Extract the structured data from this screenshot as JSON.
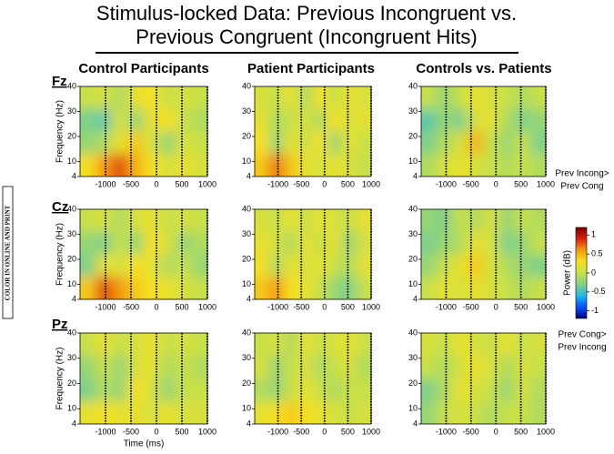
{
  "title": [
    "Stimulus-locked Data: Previous Incongruent vs.",
    "Previous Congruent (Incongruent Hits)"
  ],
  "columns": [
    "Control Participants",
    "Patient Participants",
    "Controls vs. Patients"
  ],
  "rows": [
    "Fz",
    "Cz",
    "Pz"
  ],
  "side_note": "COLOR IN ONLINE AND PRINT",
  "colormap": [
    "#00007f",
    "#0050ff",
    "#25b8e6",
    "#7fd08a",
    "#c8e04a",
    "#f5e020",
    "#f59a10",
    "#d92010",
    "#7f0000"
  ],
  "colorbar": {
    "label": "Power (dB)",
    "clim": [
      -1.2,
      1.2
    ],
    "ticks": [
      1,
      0.5,
      0,
      -0.5,
      -1
    ],
    "top_label": [
      "Prev Incong>",
      "Prev Cong"
    ],
    "bottom_label": [
      "Prev Cong>",
      "Prev Incong"
    ]
  },
  "chart_data": [
    {
      "type": "heatmap",
      "ylabel": "Frequency (Hz)",
      "xlim": [
        -1500,
        1000
      ],
      "ylim": [
        4,
        40
      ],
      "xticks": [
        -1000,
        -500,
        0,
        500,
        1000
      ],
      "yticks": [
        40,
        30,
        20,
        10,
        4
      ],
      "values": [
        [
          0,
          0.1,
          -0.1,
          0.2,
          0.3,
          0,
          0.1,
          0
        ],
        [
          -0.3,
          -0.4,
          0.1,
          -0.2,
          0.2,
          0.3,
          0,
          -0.1
        ],
        [
          -0.2,
          -0.1,
          0.2,
          0.4,
          0.1,
          -0.2,
          0.1,
          0
        ],
        [
          0.3,
          0.6,
          0.8,
          0.5,
          0.3,
          0.1,
          0.2,
          0.1
        ]
      ]
    },
    {
      "type": "heatmap",
      "xlim": [
        -1500,
        1000
      ],
      "ylim": [
        4,
        40
      ],
      "xticks": [
        -1000,
        -500,
        0,
        500,
        1000
      ],
      "yticks": [
        40,
        30,
        20,
        10,
        4
      ],
      "values": [
        [
          0.1,
          0,
          0.2,
          -0.1,
          0.3,
          0,
          0.2,
          0.1
        ],
        [
          0.2,
          -0.1,
          0,
          0.1,
          -0.1,
          0.3,
          0.1,
          0.2
        ],
        [
          0.3,
          -0.2,
          0.2,
          0,
          0.3,
          -0.2,
          0.2,
          0
        ],
        [
          0.4,
          0.7,
          0.4,
          0.2,
          0.1,
          0.2,
          0.1,
          0
        ]
      ]
    },
    {
      "type": "heatmap",
      "xlim": [
        -1500,
        1000
      ],
      "ylim": [
        4,
        40
      ],
      "xticks": [
        -1000,
        -500,
        0,
        500,
        1000
      ],
      "yticks": [
        40,
        30,
        20,
        10,
        4
      ],
      "values": [
        [
          0,
          -0.2,
          0,
          0.2,
          0.1,
          0,
          -0.1,
          0
        ],
        [
          -0.4,
          -0.2,
          -0.3,
          0.1,
          0.2,
          -0.1,
          -0.3,
          -0.2
        ],
        [
          -0.3,
          -0.1,
          0.1,
          0.5,
          0,
          -0.2,
          0,
          -0.3
        ],
        [
          -0.1,
          0.1,
          0.2,
          0.1,
          0,
          -0.1,
          0,
          -0.1
        ]
      ]
    },
    {
      "type": "heatmap",
      "ylabel": "Frequency (Hz)",
      "xlim": [
        -1500,
        1000
      ],
      "ylim": [
        4,
        40
      ],
      "xticks": [
        -1000,
        -500,
        0,
        500,
        1000
      ],
      "yticks": [
        40,
        30,
        20,
        10,
        4
      ],
      "values": [
        [
          0,
          0.1,
          -0.1,
          0.1,
          0.2,
          0,
          0.1,
          0
        ],
        [
          -0.2,
          -0.3,
          0,
          -0.2,
          0.3,
          0.1,
          -0.2,
          -0.1
        ],
        [
          -0.3,
          0.2,
          0.1,
          0.3,
          0.2,
          -0.1,
          0,
          -0.2
        ],
        [
          0.4,
          0.8,
          0.6,
          0.4,
          0.3,
          0.2,
          0.1,
          0
        ]
      ]
    },
    {
      "type": "heatmap",
      "xlim": [
        -1500,
        1000
      ],
      "ylim": [
        4,
        40
      ],
      "xticks": [
        -1000,
        -500,
        0,
        500,
        1000
      ],
      "yticks": [
        40,
        30,
        20,
        10,
        4
      ],
      "values": [
        [
          0.1,
          0,
          0.2,
          0,
          0.2,
          0.1,
          0,
          0.2
        ],
        [
          0.2,
          0.1,
          -0.1,
          0.2,
          0,
          0.2,
          -0.2,
          0.1
        ],
        [
          0.3,
          -0.1,
          0.2,
          0.1,
          0.2,
          0,
          -0.1,
          0.2
        ],
        [
          0.4,
          0.6,
          0.3,
          0.2,
          0,
          -0.2,
          -0.3,
          0
        ]
      ]
    },
    {
      "type": "heatmap",
      "xlim": [
        -1500,
        1000
      ],
      "ylim": [
        4,
        40
      ],
      "xticks": [
        -1000,
        -500,
        0,
        500,
        1000
      ],
      "yticks": [
        40,
        30,
        20,
        10,
        4
      ],
      "values": [
        [
          -0.2,
          -0.3,
          0,
          -0.1,
          0.1,
          -0.2,
          0,
          -0.1
        ],
        [
          -0.3,
          -0.2,
          -0.1,
          0.2,
          0.1,
          -0.3,
          -0.2,
          0
        ],
        [
          -0.2,
          0,
          0.2,
          0.4,
          0.1,
          -0.1,
          -0.2,
          -0.3
        ],
        [
          0,
          0.2,
          0.1,
          0.2,
          0.1,
          0,
          -0.1,
          0
        ]
      ]
    },
    {
      "type": "heatmap",
      "ylabel": "Frequency (Hz)",
      "xlabel": "Time (ms)",
      "xlim": [
        -1500,
        1000
      ],
      "ylim": [
        4,
        40
      ],
      "xticks": [
        -1000,
        -500,
        0,
        500,
        1000
      ],
      "yticks": [
        40,
        30,
        20,
        10,
        4
      ],
      "values": [
        [
          0,
          0.2,
          0,
          0.1,
          0.2,
          0,
          0.1,
          0
        ],
        [
          -0.2,
          0,
          -0.2,
          0.1,
          0.2,
          -0.1,
          0,
          -0.1
        ],
        [
          -0.3,
          -0.1,
          -0.2,
          0.3,
          0.1,
          -0.2,
          0,
          0
        ],
        [
          0.2,
          0.3,
          0.2,
          0.2,
          0.1,
          0.2,
          0.1,
          0.1
        ]
      ]
    },
    {
      "type": "heatmap",
      "xlim": [
        -1500,
        1000
      ],
      "ylim": [
        4,
        40
      ],
      "xticks": [
        -1000,
        -500,
        0,
        500,
        1000
      ],
      "yticks": [
        40,
        30,
        20,
        10,
        4
      ],
      "values": [
        [
          0,
          0.1,
          -0.1,
          0.2,
          0,
          0.1,
          0.2,
          0
        ],
        [
          0.1,
          -0.2,
          0,
          0.1,
          -0.1,
          0,
          0.1,
          -0.1
        ],
        [
          -0.1,
          -0.2,
          0,
          0.2,
          0,
          -0.1,
          0,
          0
        ],
        [
          0.2,
          0.3,
          0.4,
          0.3,
          0.2,
          0.1,
          0,
          0.1
        ]
      ]
    },
    {
      "type": "heatmap",
      "xlim": [
        -1500,
        1000
      ],
      "ylim": [
        4,
        40
      ],
      "xticks": [
        -1000,
        -500,
        0,
        500,
        1000
      ],
      "yticks": [
        40,
        30,
        20,
        10,
        4
      ],
      "values": [
        [
          0.1,
          0,
          0.2,
          0.1,
          0,
          0.2,
          0,
          0.1
        ],
        [
          0,
          -0.1,
          0.1,
          0.2,
          0.1,
          -0.1,
          0.1,
          0
        ],
        [
          -0.3,
          -0.1,
          0.2,
          0.1,
          0,
          -0.2,
          0.1,
          -0.1
        ],
        [
          -0.2,
          0,
          0.1,
          0,
          -0.1,
          0,
          0,
          -0.1
        ]
      ]
    }
  ]
}
